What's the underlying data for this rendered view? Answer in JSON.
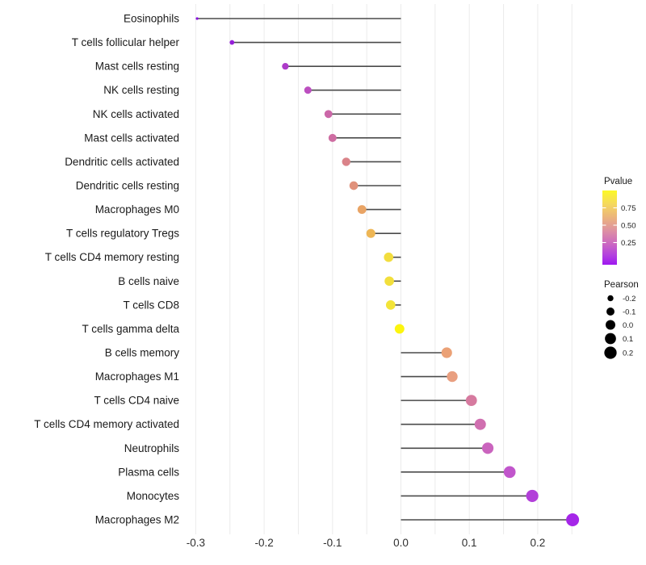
{
  "chart_data": {
    "type": "lollipop",
    "orientation": "horizontal",
    "title": "",
    "xlabel": "",
    "ylabel": "",
    "xlim": [
      -0.315,
      0.27
    ],
    "grid": "vertical gridlines every 0.05, light gray, no axis lines",
    "baseline_x": 0.0,
    "stem_color": "#4a4a4a",
    "x_ticks": [
      {
        "value": -0.3,
        "label": "-0.3"
      },
      {
        "value": -0.2,
        "label": "-0.2"
      },
      {
        "value": -0.1,
        "label": "-0.1"
      },
      {
        "value": 0.0,
        "label": "0.0"
      },
      {
        "value": 0.1,
        "label": "0.1"
      },
      {
        "value": 0.2,
        "label": "0.2"
      }
    ],
    "points": [
      {
        "label": "Eosinophils",
        "pearson": -0.298,
        "color": "#8912de"
      },
      {
        "label": "T cells follicular helper",
        "pearson": -0.247,
        "color": "#951fd8"
      },
      {
        "label": "Mast cells resting",
        "pearson": -0.169,
        "color": "#ad3bc9"
      },
      {
        "label": "NK cells resting",
        "pearson": -0.136,
        "color": "#bc4fc0"
      },
      {
        "label": "NK cells activated",
        "pearson": -0.106,
        "color": "#cb67a8"
      },
      {
        "label": "Mast cells activated",
        "pearson": -0.1,
        "color": "#ce6da2"
      },
      {
        "label": "Dendritic cells activated",
        "pearson": -0.08,
        "color": "#da8389"
      },
      {
        "label": "Dendritic cells resting",
        "pearson": -0.069,
        "color": "#e0917b"
      },
      {
        "label": "Macrophages M0",
        "pearson": -0.057,
        "color": "#e9a465"
      },
      {
        "label": "T cells regulatory  Tregs",
        "pearson": -0.044,
        "color": "#eeb655"
      },
      {
        "label": "T cells CD4 memory resting",
        "pearson": -0.018,
        "color": "#f2dd3e"
      },
      {
        "label": "B cells naive",
        "pearson": -0.017,
        "color": "#f2df3c"
      },
      {
        "label": "T cells CD8",
        "pearson": -0.015,
        "color": "#f3e438"
      },
      {
        "label": "T cells gamma delta",
        "pearson": -0.002,
        "color": "#fcf50f"
      },
      {
        "label": "B cells memory",
        "pearson": 0.067,
        "color": "#eba176"
      },
      {
        "label": "Macrophages M1",
        "pearson": 0.075,
        "color": "#e99f80"
      },
      {
        "label": "T cells CD4 naive",
        "pearson": 0.103,
        "color": "#d67a9f"
      },
      {
        "label": "T cells CD4 memory activated",
        "pearson": 0.116,
        "color": "#d06fb0"
      },
      {
        "label": "Neutrophils",
        "pearson": 0.127,
        "color": "#ca64be"
      },
      {
        "label": "Plasma cells",
        "pearson": 0.159,
        "color": "#c156cc"
      },
      {
        "label": "Monocytes",
        "pearson": 0.192,
        "color": "#b23fd9"
      },
      {
        "label": "Macrophages M2",
        "pearson": 0.251,
        "color": "#a526e8"
      }
    ],
    "legend": {
      "position": "right",
      "pvalue": {
        "title": "Pvalue",
        "ticks": [
          {
            "label": "0.75"
          },
          {
            "label": "0.50"
          },
          {
            "label": "0.25"
          }
        ],
        "gradient_stops": [
          {
            "offset": 0.0,
            "color": "#fcf926"
          },
          {
            "offset": 0.18,
            "color": "#f5d95c"
          },
          {
            "offset": 0.38,
            "color": "#eab080"
          },
          {
            "offset": 0.55,
            "color": "#dd8fa4"
          },
          {
            "offset": 0.72,
            "color": "#cb67c2"
          },
          {
            "offset": 0.88,
            "color": "#b23fe0"
          },
          {
            "offset": 1.0,
            "color": "#9e17f0"
          }
        ]
      },
      "pearson": {
        "title": "Pearson",
        "items": [
          {
            "value": -0.2,
            "label": "-0.2"
          },
          {
            "value": -0.1,
            "label": "-0.1"
          },
          {
            "value": 0.0,
            "label": "0.0"
          },
          {
            "value": 0.1,
            "label": "0.1"
          },
          {
            "value": 0.2,
            "label": "0.2"
          }
        ],
        "dot_color": "#000000"
      }
    }
  }
}
